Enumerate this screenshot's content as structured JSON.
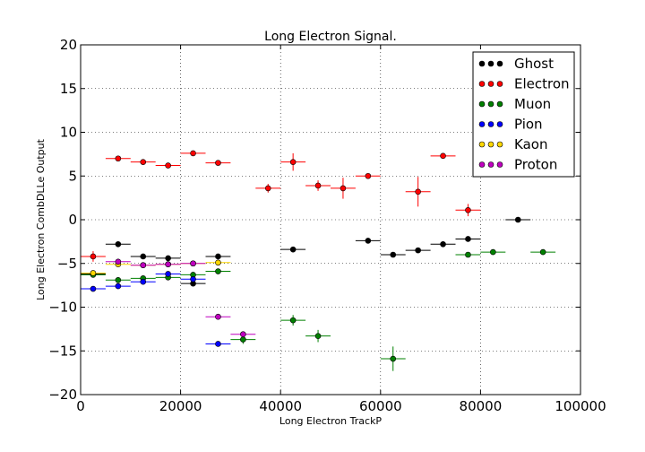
{
  "chart_data": {
    "type": "scatter",
    "title": "Long Electron Signal.",
    "xlabel": "Long Electron TrackP",
    "ylabel": "Long Electron CombDLLe Output",
    "xlim": [
      0,
      100000
    ],
    "ylim": [
      -20,
      20
    ],
    "x_ticks": [
      "0",
      "20000",
      "40000",
      "60000",
      "80000",
      "100000"
    ],
    "y_ticks": [
      "20",
      "15",
      "10",
      "5",
      "0",
      "−5",
      "−10",
      "−15",
      "−20"
    ],
    "grid": true,
    "legend_position": "top-right",
    "series": [
      {
        "name": "Ghost",
        "color": "#000000",
        "points": [
          {
            "x": 2500,
            "y": -6.2,
            "xerr": 2500,
            "yerr": 0.2
          },
          {
            "x": 7500,
            "y": -2.8,
            "xerr": 2500,
            "yerr": 0.2
          },
          {
            "x": 12500,
            "y": -4.2,
            "xerr": 2500,
            "yerr": 0.2
          },
          {
            "x": 17500,
            "y": -4.4,
            "xerr": 2500,
            "yerr": 0.2
          },
          {
            "x": 22500,
            "y": -7.3,
            "xerr": 2500,
            "yerr": 0.2
          },
          {
            "x": 27500,
            "y": -4.2,
            "xerr": 2500,
            "yerr": 0.2
          },
          {
            "x": 42500,
            "y": -3.4,
            "xerr": 2500,
            "yerr": 0.2
          },
          {
            "x": 57500,
            "y": -2.4,
            "xerr": 2500,
            "yerr": 0.2
          },
          {
            "x": 62500,
            "y": -4.0,
            "xerr": 2500,
            "yerr": 0.2
          },
          {
            "x": 67500,
            "y": -3.5,
            "xerr": 2500,
            "yerr": 0.2
          },
          {
            "x": 72500,
            "y": -2.8,
            "xerr": 2500,
            "yerr": 0.2
          },
          {
            "x": 77500,
            "y": -2.2,
            "xerr": 2500,
            "yerr": 0.2
          },
          {
            "x": 87500,
            "y": 0.0,
            "xerr": 2500,
            "yerr": 0.1
          }
        ]
      },
      {
        "name": "Electron",
        "color": "#ff0000",
        "points": [
          {
            "x": 2500,
            "y": -4.2,
            "xerr": 2500,
            "yerr": 0.6
          },
          {
            "x": 7500,
            "y": 7.0,
            "xerr": 2500,
            "yerr": 0.2
          },
          {
            "x": 12500,
            "y": 6.6,
            "xerr": 2500,
            "yerr": 0.2
          },
          {
            "x": 17500,
            "y": 6.2,
            "xerr": 2500,
            "yerr": 0.2
          },
          {
            "x": 22500,
            "y": 7.6,
            "xerr": 2500,
            "yerr": 0.2
          },
          {
            "x": 27500,
            "y": 6.5,
            "xerr": 2500,
            "yerr": 0.2
          },
          {
            "x": 37500,
            "y": 3.6,
            "xerr": 2500,
            "yerr": 0.5
          },
          {
            "x": 42500,
            "y": 6.6,
            "xerr": 2500,
            "yerr": 1.0
          },
          {
            "x": 47500,
            "y": 3.9,
            "xerr": 2500,
            "yerr": 0.6
          },
          {
            "x": 52500,
            "y": 3.6,
            "xerr": 2500,
            "yerr": 1.2
          },
          {
            "x": 57500,
            "y": 5.0,
            "xerr": 2500,
            "yerr": 0.2
          },
          {
            "x": 67500,
            "y": 3.2,
            "xerr": 2500,
            "yerr": 1.7
          },
          {
            "x": 72500,
            "y": 7.3,
            "xerr": 2500,
            "yerr": 0.2
          },
          {
            "x": 77500,
            "y": 1.1,
            "xerr": 2500,
            "yerr": 0.7
          }
        ]
      },
      {
        "name": "Muon",
        "color": "#008000",
        "points": [
          {
            "x": 2500,
            "y": -6.3,
            "xerr": 2500,
            "yerr": 0.2
          },
          {
            "x": 7500,
            "y": -6.9,
            "xerr": 2500,
            "yerr": 0.2
          },
          {
            "x": 12500,
            "y": -6.7,
            "xerr": 2500,
            "yerr": 0.2
          },
          {
            "x": 17500,
            "y": -6.6,
            "xerr": 2500,
            "yerr": 0.2
          },
          {
            "x": 22500,
            "y": -6.3,
            "xerr": 2500,
            "yerr": 0.2
          },
          {
            "x": 27500,
            "y": -5.9,
            "xerr": 2500,
            "yerr": 0.2
          },
          {
            "x": 32500,
            "y": -13.7,
            "xerr": 2500,
            "yerr": 0.5
          },
          {
            "x": 42500,
            "y": -11.5,
            "xerr": 2500,
            "yerr": 0.6
          },
          {
            "x": 47500,
            "y": -13.3,
            "xerr": 2500,
            "yerr": 0.7
          },
          {
            "x": 62500,
            "y": -15.9,
            "xerr": 2500,
            "yerr": 1.4
          },
          {
            "x": 77500,
            "y": -4.0,
            "xerr": 2500,
            "yerr": 0.2
          },
          {
            "x": 82500,
            "y": -3.7,
            "xerr": 2500,
            "yerr": 0.2
          },
          {
            "x": 92500,
            "y": -3.7,
            "xerr": 2500,
            "yerr": 0.2
          }
        ]
      },
      {
        "name": "Pion",
        "color": "#0000ff",
        "points": [
          {
            "x": 2500,
            "y": -7.9,
            "xerr": 2500,
            "yerr": 0.2
          },
          {
            "x": 7500,
            "y": -7.6,
            "xerr": 2500,
            "yerr": 0.2
          },
          {
            "x": 12500,
            "y": -7.1,
            "xerr": 2500,
            "yerr": 0.2
          },
          {
            "x": 17500,
            "y": -6.2,
            "xerr": 2500,
            "yerr": 0.2
          },
          {
            "x": 22500,
            "y": -6.8,
            "xerr": 2500,
            "yerr": 0.2
          },
          {
            "x": 27500,
            "y": -14.2,
            "xerr": 2500,
            "yerr": 0.2
          }
        ]
      },
      {
        "name": "Kaon",
        "color": "#ffd700",
        "points": [
          {
            "x": 2500,
            "y": -6.1,
            "xerr": 2500,
            "yerr": 0.2
          },
          {
            "x": 7500,
            "y": -5.1,
            "xerr": 2500,
            "yerr": 0.2
          },
          {
            "x": 12500,
            "y": -5.2,
            "xerr": 2500,
            "yerr": 0.2
          },
          {
            "x": 17500,
            "y": -5.1,
            "xerr": 2500,
            "yerr": 0.2
          },
          {
            "x": 22500,
            "y": -5.0,
            "xerr": 2500,
            "yerr": 0.2
          },
          {
            "x": 27500,
            "y": -4.9,
            "xerr": 2500,
            "yerr": 0.2
          }
        ]
      },
      {
        "name": "Proton",
        "color": "#bf00bf",
        "points": [
          {
            "x": 7500,
            "y": -4.8,
            "xerr": 2500,
            "yerr": 0.2
          },
          {
            "x": 12500,
            "y": -5.2,
            "xerr": 2500,
            "yerr": 0.2
          },
          {
            "x": 17500,
            "y": -5.1,
            "xerr": 2500,
            "yerr": 0.2
          },
          {
            "x": 22500,
            "y": -5.0,
            "xerr": 2500,
            "yerr": 0.2
          },
          {
            "x": 27500,
            "y": -11.1,
            "xerr": 2500,
            "yerr": 0.2
          },
          {
            "x": 32500,
            "y": -13.1,
            "xerr": 2500,
            "yerr": 0.3
          }
        ]
      }
    ]
  }
}
